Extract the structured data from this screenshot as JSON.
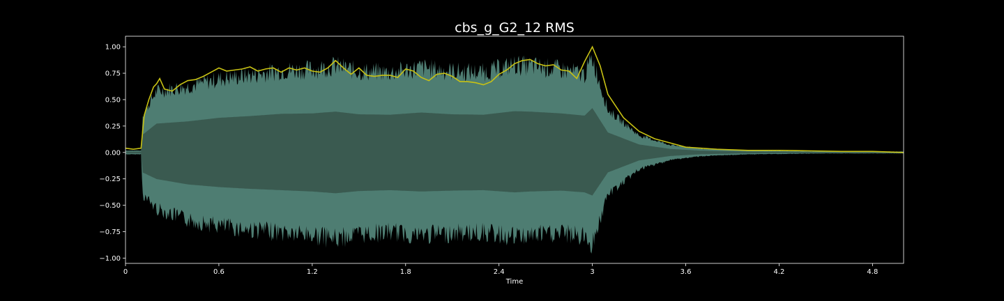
{
  "chart_data": {
    "type": "area",
    "title": "cbs_g_G2_12 RMS",
    "xlabel": "Time",
    "ylabel": "",
    "xlim": [
      0,
      5.0
    ],
    "ylim": [
      -1.05,
      1.1
    ],
    "xticks": [
      0,
      0.6,
      1.2,
      1.8,
      2.4,
      3.0,
      3.6,
      4.2,
      4.8
    ],
    "xtick_labels": [
      "0",
      "0.6",
      "1.2",
      "1.8",
      "2.4",
      "3",
      "3.6",
      "4.2",
      "4.8"
    ],
    "yticks": [
      1.0,
      0.75,
      0.5,
      0.25,
      0.0,
      -0.25,
      -0.5,
      -0.75,
      -1.0
    ],
    "ytick_labels": [
      "1.00",
      "0.75",
      "0.50",
      "0.25",
      "0.00",
      "−0.25",
      "−0.50",
      "−0.75",
      "−1.00"
    ],
    "grid": false,
    "series": [
      {
        "kind": "waveform-envelope",
        "color_outer": "#4e7d72",
        "color_inner": "#3a5a50",
        "peak_time": [
          0,
          0.1,
          0.11,
          0.2,
          0.4,
          0.6,
          0.8,
          1.0,
          1.2,
          1.35,
          1.5,
          1.7,
          1.9,
          2.1,
          2.3,
          2.5,
          2.6,
          2.8,
          2.95,
          3.0,
          3.1,
          3.3,
          3.5,
          3.7,
          4.0,
          4.5,
          5.0
        ],
        "peak_upper": [
          0.02,
          0.02,
          0.4,
          0.65,
          0.7,
          0.78,
          0.82,
          0.87,
          0.88,
          0.92,
          0.86,
          0.85,
          0.9,
          0.86,
          0.85,
          0.93,
          0.92,
          0.88,
          0.83,
          1.0,
          0.45,
          0.18,
          0.08,
          0.04,
          0.02,
          0.01,
          0.01
        ],
        "peak_lower": [
          -0.02,
          -0.02,
          -0.45,
          -0.6,
          -0.72,
          -0.78,
          -0.82,
          -0.85,
          -0.88,
          -0.92,
          -0.87,
          -0.85,
          -0.88,
          -0.86,
          -0.85,
          -0.9,
          -0.88,
          -0.86,
          -0.9,
          -0.97,
          -0.45,
          -0.18,
          -0.08,
          -0.04,
          -0.02,
          -0.01,
          -0.01
        ]
      },
      {
        "kind": "line",
        "color": "#c8c214",
        "x": [
          0,
          0.05,
          0.1,
          0.12,
          0.15,
          0.18,
          0.2,
          0.22,
          0.25,
          0.3,
          0.35,
          0.4,
          0.45,
          0.5,
          0.55,
          0.6,
          0.65,
          0.7,
          0.75,
          0.8,
          0.85,
          0.9,
          0.95,
          1.0,
          1.05,
          1.1,
          1.15,
          1.2,
          1.25,
          1.3,
          1.35,
          1.4,
          1.45,
          1.5,
          1.55,
          1.6,
          1.65,
          1.7,
          1.75,
          1.8,
          1.85,
          1.9,
          1.95,
          2.0,
          2.05,
          2.1,
          2.15,
          2.2,
          2.25,
          2.3,
          2.35,
          2.4,
          2.45,
          2.5,
          2.55,
          2.6,
          2.65,
          2.7,
          2.75,
          2.8,
          2.85,
          2.9,
          2.95,
          3.0,
          3.05,
          3.1,
          3.2,
          3.3,
          3.4,
          3.5,
          3.6,
          3.8,
          4.0,
          4.2,
          4.4,
          4.6,
          4.8,
          5.0
        ],
        "y": [
          0.04,
          0.03,
          0.04,
          0.35,
          0.5,
          0.62,
          0.65,
          0.7,
          0.6,
          0.58,
          0.64,
          0.68,
          0.69,
          0.72,
          0.76,
          0.8,
          0.77,
          0.78,
          0.79,
          0.81,
          0.77,
          0.79,
          0.8,
          0.76,
          0.8,
          0.78,
          0.8,
          0.77,
          0.76,
          0.8,
          0.87,
          0.8,
          0.74,
          0.8,
          0.73,
          0.72,
          0.73,
          0.73,
          0.71,
          0.79,
          0.77,
          0.71,
          0.68,
          0.74,
          0.75,
          0.72,
          0.67,
          0.67,
          0.66,
          0.64,
          0.67,
          0.74,
          0.78,
          0.84,
          0.87,
          0.88,
          0.84,
          0.82,
          0.83,
          0.78,
          0.77,
          0.7,
          0.86,
          1.0,
          0.82,
          0.55,
          0.33,
          0.2,
          0.13,
          0.09,
          0.05,
          0.03,
          0.02,
          0.02,
          0.015,
          0.01,
          0.01,
          0.0
        ]
      }
    ]
  }
}
